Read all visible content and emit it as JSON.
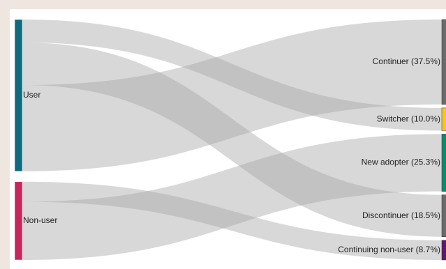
{
  "chart_data": {
    "type": "sankey",
    "title": "",
    "sources": [
      {
        "id": "user",
        "label": "User",
        "color": "#0e6a7e"
      },
      {
        "id": "nonuser",
        "label": "Non-user",
        "color": "#c8255b"
      }
    ],
    "targets": [
      {
        "id": "continuer",
        "label": "Continuer (37.5%)",
        "value": 37.5,
        "color": "#6b6b6b"
      },
      {
        "id": "switcher",
        "label": "Switcher (10.0%)",
        "value": 10.0,
        "color": "#f2c623"
      },
      {
        "id": "newadopter",
        "label": "New adopter (25.3%)",
        "value": 25.3,
        "color": "#0d8a6a"
      },
      {
        "id": "discontinuer",
        "label": "Discontinuer (18.5%)",
        "value": 18.5,
        "color": "#6b6b6b"
      },
      {
        "id": "contnonuser",
        "label": "Continuing non-user (8.7%)",
        "value": 8.7,
        "color": "#5b1a6e"
      }
    ],
    "links": [
      {
        "source": "user",
        "target": "switcher",
        "value": 10.0
      },
      {
        "source": "user",
        "target": "discontinuer",
        "value": 18.5
      },
      {
        "source": "user",
        "target": "continuer",
        "value": 37.5
      },
      {
        "source": "nonuser",
        "target": "contnonuser",
        "value": 8.7
      },
      {
        "source": "nonuser",
        "target": "newadopter",
        "value": 25.3
      }
    ]
  }
}
